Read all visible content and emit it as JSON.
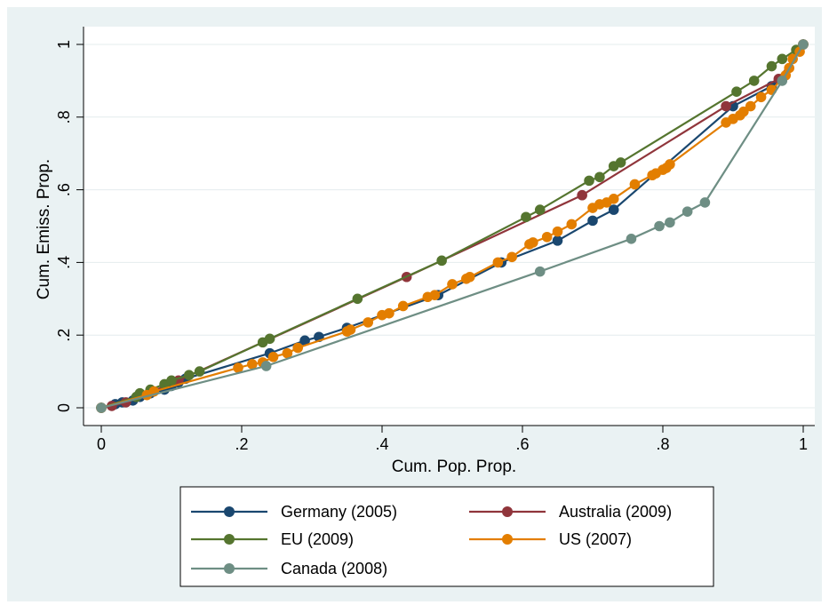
{
  "chart_data": {
    "type": "line",
    "xlabel": "Cum. Pop. Prop.",
    "ylabel": "Cum. Emiss. Prop.",
    "xlim": [
      0,
      1
    ],
    "ylim": [
      0,
      1
    ],
    "x_ticks": [
      0,
      0.2,
      0.4,
      0.6,
      0.8,
      1
    ],
    "x_tick_labels": [
      "0",
      ".2",
      ".4",
      ".6",
      ".8",
      "1"
    ],
    "y_ticks": [
      0,
      0.2,
      0.4,
      0.6,
      0.8,
      1
    ],
    "y_tick_labels": [
      "0",
      ".2",
      ".4",
      ".6",
      ".8",
      "1"
    ],
    "grid": "horizontal",
    "legend_position": "bottom",
    "colors": {
      "panel_background": "#eaf2f3",
      "plot_background": "#ffffff",
      "grid": "#e4ecee"
    },
    "series": [
      {
        "name": "Germany (2005)",
        "color": "#1a476f",
        "points": [
          [
            0,
            0
          ],
          [
            0.02,
            0.01
          ],
          [
            0.03,
            0.015
          ],
          [
            0.045,
            0.02
          ],
          [
            0.055,
            0.03
          ],
          [
            0.07,
            0.04
          ],
          [
            0.09,
            0.05
          ],
          [
            0.1,
            0.06
          ],
          [
            0.11,
            0.07
          ],
          [
            0.12,
            0.08
          ],
          [
            0.24,
            0.15
          ],
          [
            0.29,
            0.185
          ],
          [
            0.31,
            0.195
          ],
          [
            0.35,
            0.22
          ],
          [
            0.48,
            0.31
          ],
          [
            0.57,
            0.4
          ],
          [
            0.65,
            0.46
          ],
          [
            0.7,
            0.515
          ],
          [
            0.73,
            0.545
          ],
          [
            0.9,
            0.83
          ],
          [
            0.955,
            0.885
          ],
          [
            0.97,
            0.905
          ],
          [
            1,
            1
          ]
        ]
      },
      {
        "name": "Australia (2009)",
        "color": "#90353b",
        "points": [
          [
            0,
            0
          ],
          [
            0.015,
            0.005
          ],
          [
            0.035,
            0.015
          ],
          [
            0.11,
            0.075
          ],
          [
            0.435,
            0.36
          ],
          [
            0.685,
            0.585
          ],
          [
            0.89,
            0.83
          ],
          [
            0.965,
            0.905
          ],
          [
            1,
            1
          ]
        ]
      },
      {
        "name": "EU (2009)",
        "color": "#55752f",
        "points": [
          [
            0,
            0
          ],
          [
            0.05,
            0.03
          ],
          [
            0.055,
            0.04
          ],
          [
            0.07,
            0.05
          ],
          [
            0.09,
            0.065
          ],
          [
            0.1,
            0.075
          ],
          [
            0.125,
            0.09
          ],
          [
            0.14,
            0.1
          ],
          [
            0.23,
            0.18
          ],
          [
            0.24,
            0.19
          ],
          [
            0.365,
            0.3
          ],
          [
            0.485,
            0.405
          ],
          [
            0.605,
            0.525
          ],
          [
            0.625,
            0.545
          ],
          [
            0.695,
            0.625
          ],
          [
            0.71,
            0.635
          ],
          [
            0.73,
            0.665
          ],
          [
            0.74,
            0.675
          ],
          [
            0.905,
            0.87
          ],
          [
            0.93,
            0.9
          ],
          [
            0.955,
            0.94
          ],
          [
            0.97,
            0.96
          ],
          [
            0.99,
            0.985
          ],
          [
            1,
            1
          ]
        ]
      },
      {
        "name": "US (2007)",
        "color": "#e37e00",
        "points": [
          [
            0,
            0
          ],
          [
            0.065,
            0.035
          ],
          [
            0.075,
            0.045
          ],
          [
            0.195,
            0.11
          ],
          [
            0.215,
            0.12
          ],
          [
            0.23,
            0.125
          ],
          [
            0.245,
            0.14
          ],
          [
            0.265,
            0.15
          ],
          [
            0.28,
            0.165
          ],
          [
            0.35,
            0.21
          ],
          [
            0.355,
            0.215
          ],
          [
            0.38,
            0.235
          ],
          [
            0.4,
            0.255
          ],
          [
            0.41,
            0.26
          ],
          [
            0.43,
            0.28
          ],
          [
            0.465,
            0.305
          ],
          [
            0.475,
            0.31
          ],
          [
            0.5,
            0.34
          ],
          [
            0.52,
            0.355
          ],
          [
            0.525,
            0.36
          ],
          [
            0.565,
            0.4
          ],
          [
            0.585,
            0.415
          ],
          [
            0.61,
            0.45
          ],
          [
            0.615,
            0.455
          ],
          [
            0.635,
            0.47
          ],
          [
            0.65,
            0.485
          ],
          [
            0.67,
            0.505
          ],
          [
            0.7,
            0.55
          ],
          [
            0.71,
            0.56
          ],
          [
            0.72,
            0.565
          ],
          [
            0.73,
            0.575
          ],
          [
            0.76,
            0.615
          ],
          [
            0.785,
            0.64
          ],
          [
            0.79,
            0.645
          ],
          [
            0.8,
            0.655
          ],
          [
            0.805,
            0.66
          ],
          [
            0.81,
            0.67
          ],
          [
            0.89,
            0.785
          ],
          [
            0.9,
            0.795
          ],
          [
            0.91,
            0.805
          ],
          [
            0.915,
            0.815
          ],
          [
            0.925,
            0.83
          ],
          [
            0.94,
            0.855
          ],
          [
            0.955,
            0.875
          ],
          [
            0.975,
            0.915
          ],
          [
            0.98,
            0.935
          ],
          [
            0.985,
            0.96
          ],
          [
            0.995,
            0.98
          ],
          [
            1,
            1
          ]
        ]
      },
      {
        "name": "Canada (2008)",
        "color": "#6e8e84",
        "points": [
          [
            0,
            0
          ],
          [
            0.235,
            0.115
          ],
          [
            0.625,
            0.375
          ],
          [
            0.755,
            0.465
          ],
          [
            0.795,
            0.5
          ],
          [
            0.81,
            0.51
          ],
          [
            0.835,
            0.54
          ],
          [
            0.86,
            0.565
          ],
          [
            0.97,
            0.9
          ],
          [
            1,
            1
          ]
        ]
      }
    ]
  }
}
